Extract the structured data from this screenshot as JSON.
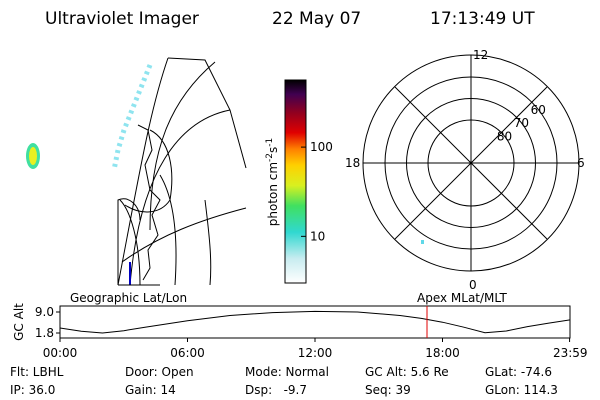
{
  "header": {
    "instrument": "Ultraviolet Imager",
    "date": "22 May 07",
    "time": "17:13:49 UT"
  },
  "colorbar": {
    "label": [
      "photon cm",
      "-2",
      "s",
      "-1"
    ],
    "log": true,
    "clim": [
      3,
      565
    ],
    "ticks": [
      10,
      100
    ]
  },
  "polar": {
    "rings": [
      80,
      70,
      60
    ],
    "mlt_labels": [
      "12",
      "18",
      "6",
      "0"
    ]
  },
  "orbit_plot": {
    "y_label": "GC Alt",
    "left_title": "Geographic Lat/Lon",
    "right_title": "Apex MLat/MLT",
    "ylim": [
      1.8,
      9.0
    ],
    "yticks": [
      {
        "value": 9.0,
        "label": "9.0"
      },
      {
        "value": 1.8,
        "label": "1.8"
      }
    ],
    "xlim": [
      0,
      24
    ],
    "xticks": [
      {
        "value": 0,
        "label": "00:00"
      },
      {
        "value": 6,
        "label": "06:00"
      },
      {
        "value": 12,
        "label": "12:00"
      },
      {
        "value": 18,
        "label": "18:00"
      },
      {
        "value": 23.98,
        "label": "23:59"
      }
    ],
    "x": [
      0,
      1,
      2,
      3,
      4,
      6,
      8,
      10,
      12,
      14,
      16,
      17,
      18,
      19,
      20,
      21,
      22,
      23,
      24
    ],
    "values": [
      3.5,
      2.4,
      1.8,
      2.6,
      3.8,
      6.0,
      7.8,
      8.8,
      9.2,
      9.0,
      7.8,
      6.8,
      5.5,
      3.8,
      1.9,
      2.5,
      4.0,
      5.2,
      6.3
    ],
    "current_time": 17.27,
    "marker_color": "#e00000"
  },
  "info": [
    [
      "Flt: LBHL",
      "Door: Open",
      "Mode: Normal",
      "GC Alt: 5.6 Re",
      "GLat: -74.6"
    ],
    [
      "IP: 36.0",
      "Gain: 14",
      "Dsp:   -9.7",
      "Seq: 39",
      "GLon: 114.3"
    ]
  ]
}
